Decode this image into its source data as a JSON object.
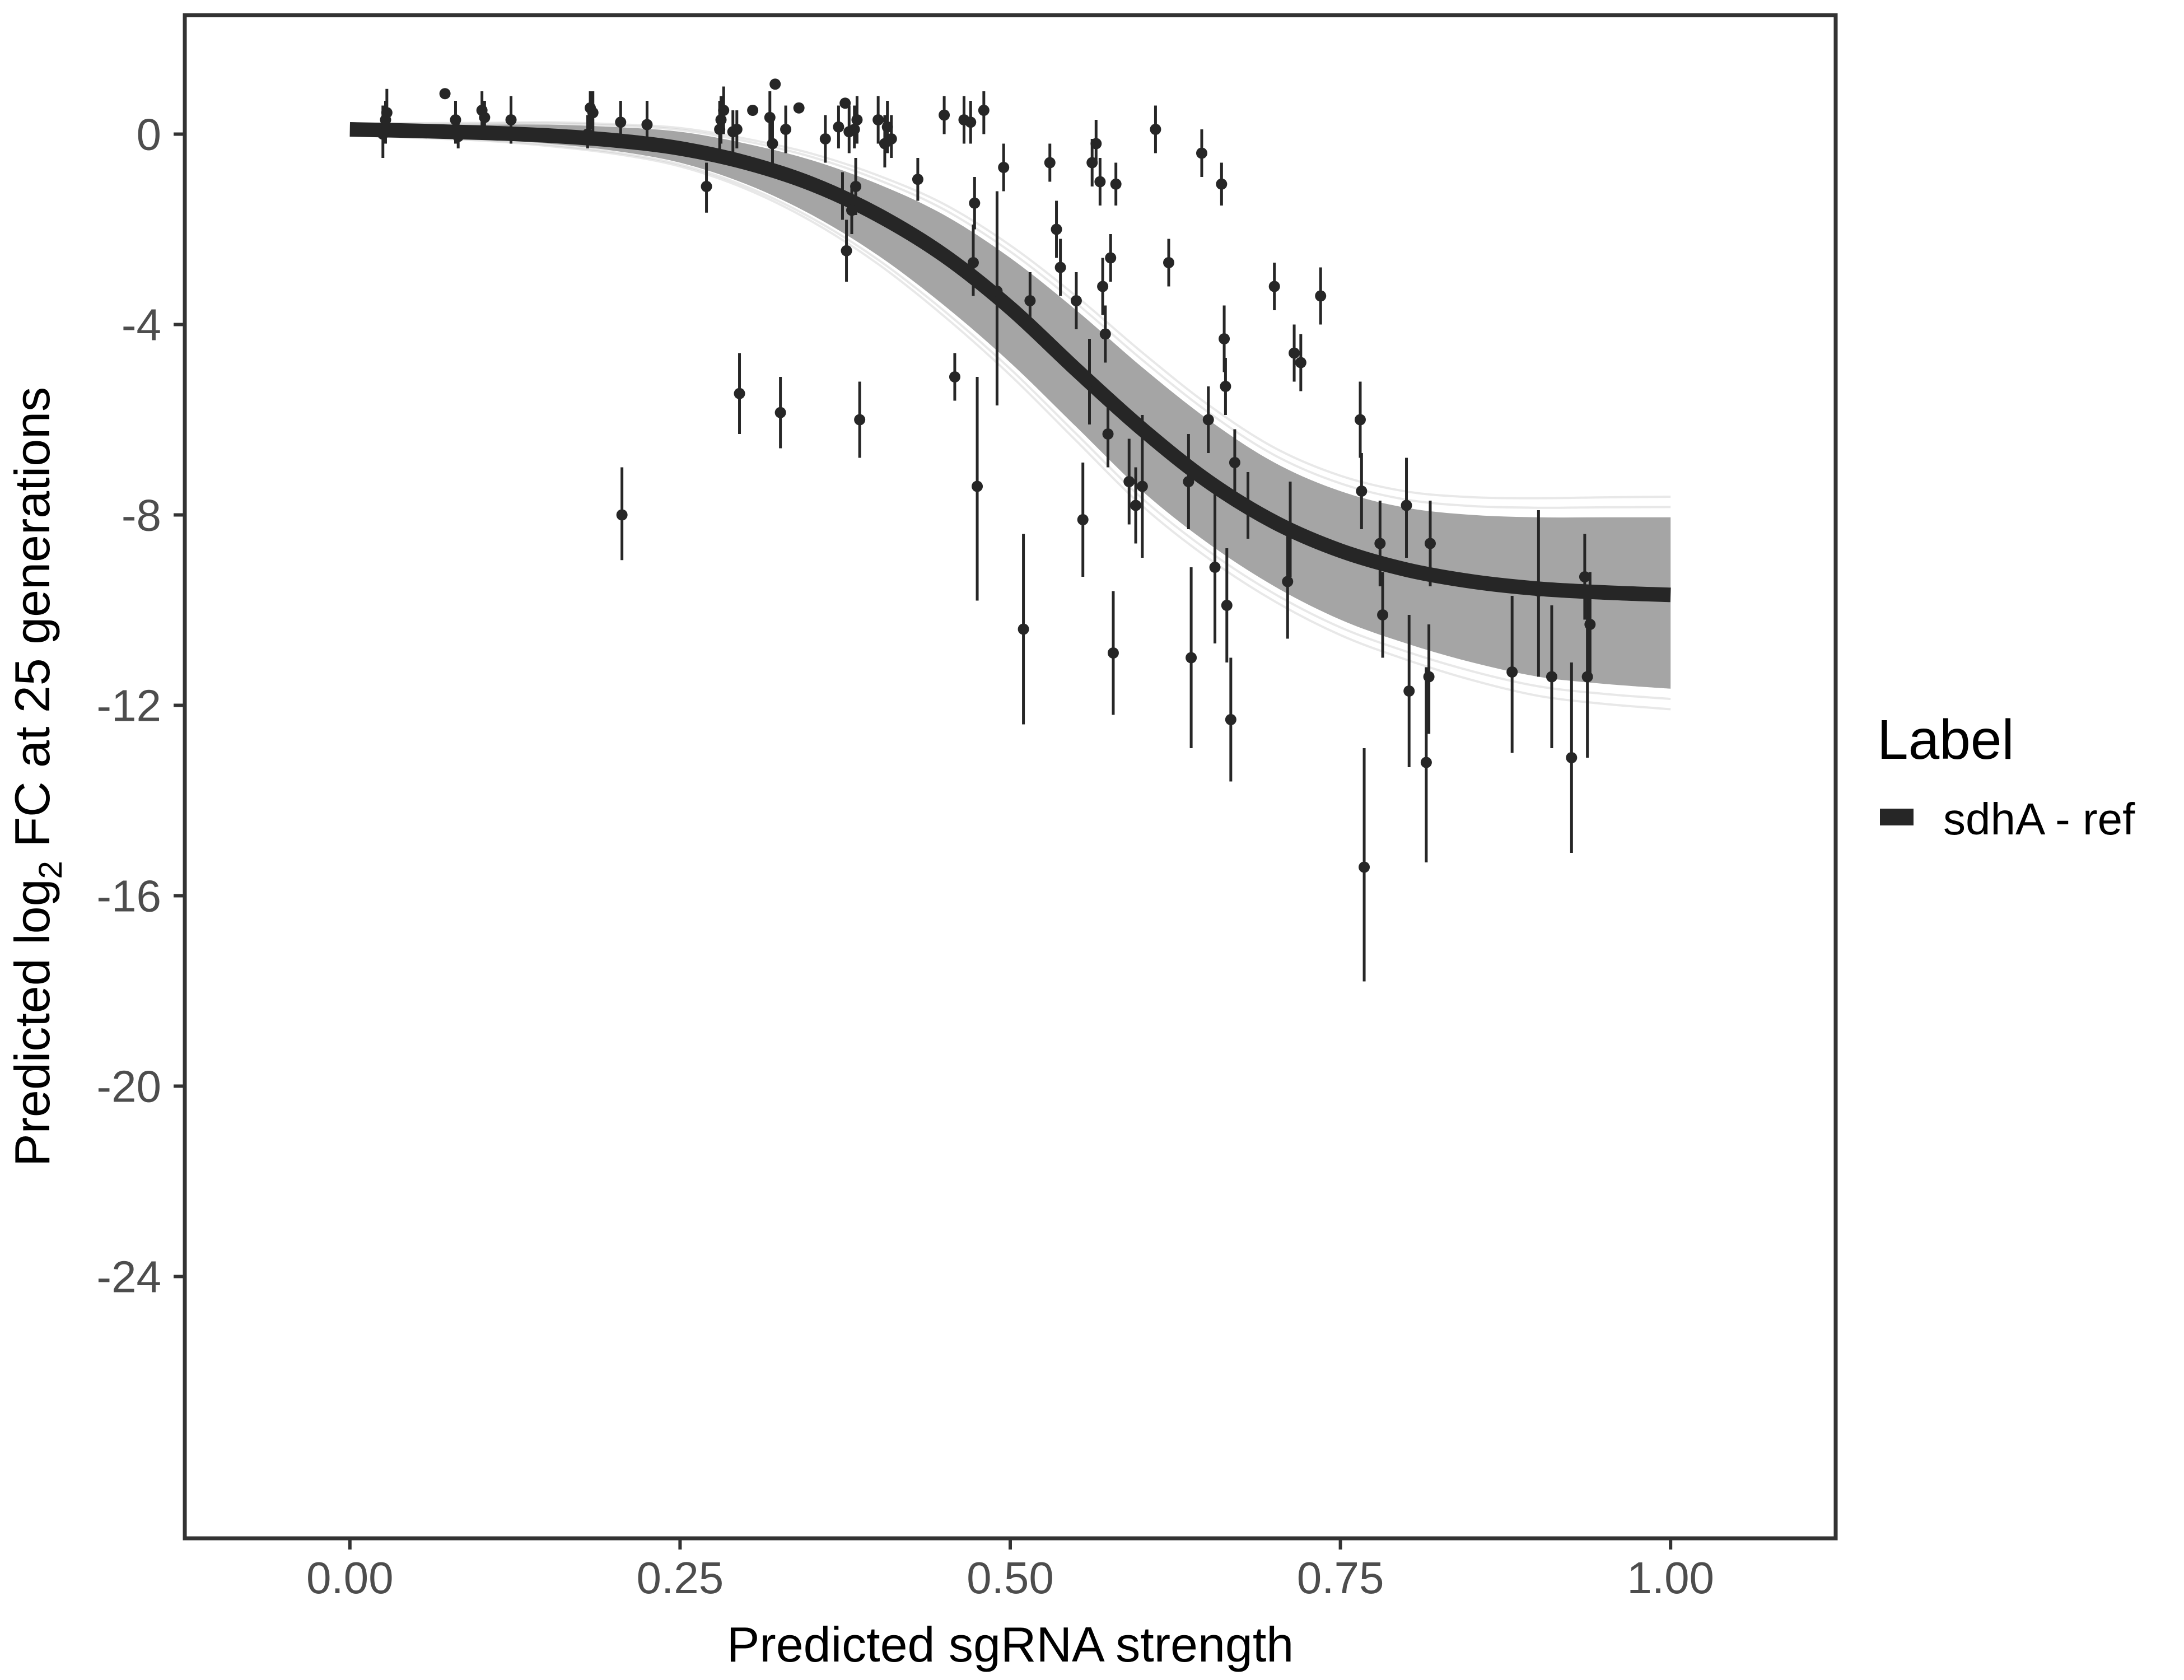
{
  "chart_data": {
    "type": "scatter",
    "title": "",
    "xlabel": "Predicted sgRNA strength",
    "ylabel_parts": {
      "pre": "Predicted  log",
      "sub": "2",
      "post": " FC at 25 generations"
    },
    "xlim": [
      -0.125,
      1.125
    ],
    "ylim": [
      -29.5,
      2.5
    ],
    "x_ticks": [
      {
        "value": 0.0,
        "label": "0.00"
      },
      {
        "value": 0.25,
        "label": "0.25"
      },
      {
        "value": 0.5,
        "label": "0.50"
      },
      {
        "value": 0.75,
        "label": "0.75"
      },
      {
        "value": 1.0,
        "label": "1.00"
      }
    ],
    "y_ticks": [
      {
        "value": 0,
        "label": "0"
      },
      {
        "value": -4,
        "label": "-4"
      },
      {
        "value": -8,
        "label": "-8"
      },
      {
        "value": -12,
        "label": "-12"
      },
      {
        "value": -16,
        "label": "-16"
      },
      {
        "value": -20,
        "label": "-20"
      },
      {
        "value": -24,
        "label": "-24"
      }
    ],
    "grid": false,
    "legend": {
      "title": "Label",
      "position": "right",
      "entries": [
        {
          "label": "sdhA - ref",
          "color": "#262626"
        }
      ]
    },
    "fit_curve": {
      "name": "sdhA - ref",
      "color": "#262626",
      "x": [
        0.0,
        0.05,
        0.1,
        0.15,
        0.2,
        0.25,
        0.3,
        0.35,
        0.4,
        0.45,
        0.5,
        0.55,
        0.6,
        0.65,
        0.7,
        0.75,
        0.8,
        0.85,
        0.9,
        0.95,
        1.0
      ],
      "y": [
        0.1,
        0.07,
        0.03,
        -0.03,
        -0.13,
        -0.3,
        -0.6,
        -1.05,
        -1.7,
        -2.55,
        -3.65,
        -4.95,
        -6.2,
        -7.3,
        -8.15,
        -8.75,
        -9.15,
        -9.4,
        -9.55,
        -9.63,
        -9.68
      ]
    },
    "posterior_band": {
      "color": "#999999",
      "x": [
        0.0,
        0.05,
        0.1,
        0.15,
        0.2,
        0.25,
        0.3,
        0.35,
        0.4,
        0.45,
        0.5,
        0.55,
        0.6,
        0.65,
        0.7,
        0.75,
        0.8,
        0.85,
        0.9,
        0.95,
        1.0
      ],
      "upper": [
        0.2,
        0.2,
        0.2,
        0.2,
        0.15,
        0.05,
        -0.2,
        -0.55,
        -1.05,
        -1.7,
        -2.6,
        -3.7,
        -4.9,
        -6.0,
        -6.9,
        -7.5,
        -7.85,
        -8.0,
        -8.05,
        -8.05,
        -8.05
      ],
      "lower": [
        0.0,
        -0.05,
        -0.1,
        -0.2,
        -0.35,
        -0.6,
        -1.05,
        -1.7,
        -2.55,
        -3.6,
        -4.8,
        -6.15,
        -7.5,
        -8.6,
        -9.5,
        -10.2,
        -10.7,
        -11.1,
        -11.4,
        -11.55,
        -11.65
      ]
    },
    "points": [
      {
        "x": 0.025,
        "y": 0.0,
        "lo": -0.5,
        "hi": 0.6
      },
      {
        "x": 0.027,
        "y": 0.3,
        "lo": -0.2,
        "hi": 0.7
      },
      {
        "x": 0.028,
        "y": 0.45,
        "lo": 0.0,
        "hi": 0.95
      },
      {
        "x": 0.072,
        "y": 0.85,
        "lo": 0.85,
        "hi": 0.85
      },
      {
        "x": 0.08,
        "y": 0.3,
        "lo": -0.2,
        "hi": 0.7
      },
      {
        "x": 0.082,
        "y": -0.05,
        "lo": -0.3,
        "hi": 0.3
      },
      {
        "x": 0.1,
        "y": 0.5,
        "lo": 0.1,
        "hi": 0.9
      },
      {
        "x": 0.102,
        "y": 0.35,
        "lo": 0.0,
        "hi": 0.7
      },
      {
        "x": 0.122,
        "y": 0.3,
        "lo": -0.2,
        "hi": 0.8
      },
      {
        "x": 0.18,
        "y": 0.0,
        "lo": -0.3,
        "hi": 0.4
      },
      {
        "x": 0.182,
        "y": 0.55,
        "lo": 0.1,
        "hi": 0.9
      },
      {
        "x": 0.184,
        "y": 0.45,
        "lo": 0.0,
        "hi": 0.9
      },
      {
        "x": 0.205,
        "y": 0.25,
        "lo": -0.2,
        "hi": 0.7
      },
      {
        "x": 0.206,
        "y": -8.0,
        "lo": -8.95,
        "hi": -7.0
      },
      {
        "x": 0.225,
        "y": 0.2,
        "lo": -0.3,
        "hi": 0.7
      },
      {
        "x": 0.27,
        "y": -1.1,
        "lo": -1.65,
        "hi": -0.6
      },
      {
        "x": 0.28,
        "y": 0.1,
        "lo": -0.4,
        "hi": 0.7
      },
      {
        "x": 0.281,
        "y": 0.3,
        "lo": -0.2,
        "hi": 0.8
      },
      {
        "x": 0.283,
        "y": 0.5,
        "lo": 0.0,
        "hi": 1.0
      },
      {
        "x": 0.29,
        "y": 0.05,
        "lo": -0.4,
        "hi": 0.5
      },
      {
        "x": 0.293,
        "y": 0.1,
        "lo": -0.3,
        "hi": 0.5
      },
      {
        "x": 0.295,
        "y": -5.45,
        "lo": -6.3,
        "hi": -4.6
      },
      {
        "x": 0.305,
        "y": 0.5,
        "lo": 0.5,
        "hi": 0.5
      },
      {
        "x": 0.318,
        "y": 0.35,
        "lo": -0.2,
        "hi": 0.9
      },
      {
        "x": 0.32,
        "y": -0.2,
        "lo": -0.7,
        "hi": 0.3
      },
      {
        "x": 0.322,
        "y": 1.05,
        "lo": 1.05,
        "hi": 1.05
      },
      {
        "x": 0.326,
        "y": -5.85,
        "lo": -6.6,
        "hi": -5.1
      },
      {
        "x": 0.33,
        "y": 0.1,
        "lo": -0.4,
        "hi": 0.6
      },
      {
        "x": 0.34,
        "y": 0.55,
        "lo": 0.55,
        "hi": 0.55
      },
      {
        "x": 0.36,
        "y": -0.1,
        "lo": -0.6,
        "hi": 0.4
      },
      {
        "x": 0.37,
        "y": 0.15,
        "lo": -0.3,
        "hi": 0.6
      },
      {
        "x": 0.373,
        "y": -1.3,
        "lo": -1.8,
        "hi": -0.8
      },
      {
        "x": 0.375,
        "y": 0.65,
        "lo": 0.65,
        "hi": 0.65
      },
      {
        "x": 0.376,
        "y": -2.45,
        "lo": -3.1,
        "hi": -1.8
      },
      {
        "x": 0.378,
        "y": 0.05,
        "lo": -0.4,
        "hi": 0.6
      },
      {
        "x": 0.38,
        "y": -1.6,
        "lo": -2.1,
        "hi": -1.1
      },
      {
        "x": 0.382,
        "y": 0.1,
        "lo": -0.3,
        "hi": 0.6
      },
      {
        "x": 0.383,
        "y": -1.1,
        "lo": -1.7,
        "hi": -0.5
      },
      {
        "x": 0.384,
        "y": 0.3,
        "lo": -0.2,
        "hi": 0.8
      },
      {
        "x": 0.386,
        "y": -6.0,
        "lo": -6.8,
        "hi": -5.2
      },
      {
        "x": 0.4,
        "y": 0.3,
        "lo": -0.2,
        "hi": 0.8
      },
      {
        "x": 0.405,
        "y": -0.2,
        "lo": -0.7,
        "hi": 0.4
      },
      {
        "x": 0.407,
        "y": 0.15,
        "lo": -0.4,
        "hi": 0.7
      },
      {
        "x": 0.41,
        "y": -0.1,
        "lo": -0.5,
        "hi": 0.4
      },
      {
        "x": 0.43,
        "y": -0.95,
        "lo": -1.4,
        "hi": -0.5
      },
      {
        "x": 0.45,
        "y": 0.4,
        "lo": 0.0,
        "hi": 0.8
      },
      {
        "x": 0.47,
        "y": 0.25,
        "lo": -0.2,
        "hi": 0.7
      },
      {
        "x": 0.48,
        "y": 0.5,
        "lo": 0.0,
        "hi": 0.9
      },
      {
        "x": 0.458,
        "y": -5.1,
        "lo": -5.6,
        "hi": -4.6
      },
      {
        "x": 0.465,
        "y": 0.3,
        "lo": -0.2,
        "hi": 0.8
      },
      {
        "x": 0.472,
        "y": -2.7,
        "lo": -3.4,
        "hi": -1.9
      },
      {
        "x": 0.473,
        "y": -1.45,
        "lo": -2.0,
        "hi": -0.9
      },
      {
        "x": 0.475,
        "y": -7.4,
        "lo": -9.8,
        "hi": -5.1
      },
      {
        "x": 0.49,
        "y": -3.3,
        "lo": -5.7,
        "hi": -1.2
      },
      {
        "x": 0.495,
        "y": -0.7,
        "lo": -1.2,
        "hi": -0.2
      },
      {
        "x": 0.51,
        "y": -10.4,
        "lo": -12.4,
        "hi": -8.4
      },
      {
        "x": 0.515,
        "y": -3.5,
        "lo": -4.1,
        "hi": -2.9
      },
      {
        "x": 0.53,
        "y": -0.6,
        "lo": -1.0,
        "hi": -0.2
      },
      {
        "x": 0.535,
        "y": -2.0,
        "lo": -2.6,
        "hi": -1.4
      },
      {
        "x": 0.538,
        "y": -2.8,
        "lo": -3.4,
        "hi": -2.2
      },
      {
        "x": 0.55,
        "y": -3.5,
        "lo": -4.1,
        "hi": -2.9
      },
      {
        "x": 0.555,
        "y": -8.1,
        "lo": -9.3,
        "hi": -6.9
      },
      {
        "x": 0.56,
        "y": -5.2,
        "lo": -6.1,
        "hi": -4.3
      },
      {
        "x": 0.562,
        "y": -0.6,
        "lo": -1.1,
        "hi": -0.1
      },
      {
        "x": 0.565,
        "y": -0.2,
        "lo": -0.6,
        "hi": 0.3
      },
      {
        "x": 0.568,
        "y": -1.0,
        "lo": -1.5,
        "hi": -0.5
      },
      {
        "x": 0.57,
        "y": -3.2,
        "lo": -3.8,
        "hi": -2.6
      },
      {
        "x": 0.572,
        "y": -4.2,
        "lo": -4.8,
        "hi": -3.6
      },
      {
        "x": 0.574,
        "y": -6.3,
        "lo": -7.0,
        "hi": -5.6
      },
      {
        "x": 0.576,
        "y": -2.6,
        "lo": -3.1,
        "hi": -2.1
      },
      {
        "x": 0.578,
        "y": -10.9,
        "lo": -12.2,
        "hi": -9.6
      },
      {
        "x": 0.58,
        "y": -1.05,
        "lo": -1.5,
        "hi": -0.6
      },
      {
        "x": 0.59,
        "y": -7.3,
        "lo": -8.2,
        "hi": -6.4
      },
      {
        "x": 0.595,
        "y": -7.8,
        "lo": -8.6,
        "hi": -7.0
      },
      {
        "x": 0.6,
        "y": -7.4,
        "lo": -8.9,
        "hi": -5.9
      },
      {
        "x": 0.61,
        "y": 0.1,
        "lo": -0.4,
        "hi": 0.6
      },
      {
        "x": 0.62,
        "y": -2.7,
        "lo": -3.2,
        "hi": -2.2
      },
      {
        "x": 0.635,
        "y": -7.3,
        "lo": -8.3,
        "hi": -6.3
      },
      {
        "x": 0.637,
        "y": -11.0,
        "lo": -12.9,
        "hi": -9.1
      },
      {
        "x": 0.645,
        "y": -0.4,
        "lo": -0.9,
        "hi": 0.1
      },
      {
        "x": 0.65,
        "y": -6.0,
        "lo": -6.7,
        "hi": -5.3
      },
      {
        "x": 0.655,
        "y": -9.1,
        "lo": -10.7,
        "hi": -7.5
      },
      {
        "x": 0.66,
        "y": -1.05,
        "lo": -1.5,
        "hi": -0.6
      },
      {
        "x": 0.662,
        "y": -4.3,
        "lo": -5.0,
        "hi": -3.6
      },
      {
        "x": 0.663,
        "y": -5.3,
        "lo": -5.9,
        "hi": -4.7
      },
      {
        "x": 0.664,
        "y": -9.9,
        "lo": -11.1,
        "hi": -8.7
      },
      {
        "x": 0.667,
        "y": -12.3,
        "lo": -13.6,
        "hi": -11.0
      },
      {
        "x": 0.67,
        "y": -6.9,
        "lo": -7.6,
        "hi": -6.2
      },
      {
        "x": 0.68,
        "y": -7.8,
        "lo": -8.5,
        "hi": -7.1
      },
      {
        "x": 0.7,
        "y": -3.2,
        "lo": -3.7,
        "hi": -2.7
      },
      {
        "x": 0.71,
        "y": -9.4,
        "lo": -10.6,
        "hi": -8.2
      },
      {
        "x": 0.712,
        "y": -8.3,
        "lo": -9.3,
        "hi": -7.3
      },
      {
        "x": 0.715,
        "y": -4.6,
        "lo": -5.2,
        "hi": -4.0
      },
      {
        "x": 0.72,
        "y": -4.8,
        "lo": -5.4,
        "hi": -4.2
      },
      {
        "x": 0.735,
        "y": -3.4,
        "lo": -4.0,
        "hi": -2.8
      },
      {
        "x": 0.765,
        "y": -6.0,
        "lo": -6.8,
        "hi": -5.2
      },
      {
        "x": 0.766,
        "y": -7.5,
        "lo": -8.3,
        "hi": -6.7
      },
      {
        "x": 0.768,
        "y": -15.4,
        "lo": -17.8,
        "hi": -12.9
      },
      {
        "x": 0.78,
        "y": -8.6,
        "lo": -9.5,
        "hi": -7.7
      },
      {
        "x": 0.782,
        "y": -10.1,
        "lo": -11.0,
        "hi": -9.2
      },
      {
        "x": 0.8,
        "y": -7.8,
        "lo": -8.9,
        "hi": -6.8
      },
      {
        "x": 0.802,
        "y": -11.7,
        "lo": -13.3,
        "hi": -10.1
      },
      {
        "x": 0.815,
        "y": -13.2,
        "lo": -15.3,
        "hi": -11.2
      },
      {
        "x": 0.817,
        "y": -11.4,
        "lo": -12.6,
        "hi": -10.3
      },
      {
        "x": 0.818,
        "y": -8.6,
        "lo": -9.5,
        "hi": -7.7
      },
      {
        "x": 0.88,
        "y": -11.3,
        "lo": -13.0,
        "hi": -9.7
      },
      {
        "x": 0.9,
        "y": -9.6,
        "lo": -11.4,
        "hi": -7.9
      },
      {
        "x": 0.91,
        "y": -11.4,
        "lo": -12.9,
        "hi": -9.9
      },
      {
        "x": 0.925,
        "y": -13.1,
        "lo": -15.1,
        "hi": -11.1
      },
      {
        "x": 0.935,
        "y": -9.3,
        "lo": -10.2,
        "hi": -8.4
      },
      {
        "x": 0.937,
        "y": -11.4,
        "lo": -13.1,
        "hi": -9.7
      },
      {
        "x": 0.939,
        "y": -10.3,
        "lo": -11.4,
        "hi": -9.2
      }
    ]
  }
}
